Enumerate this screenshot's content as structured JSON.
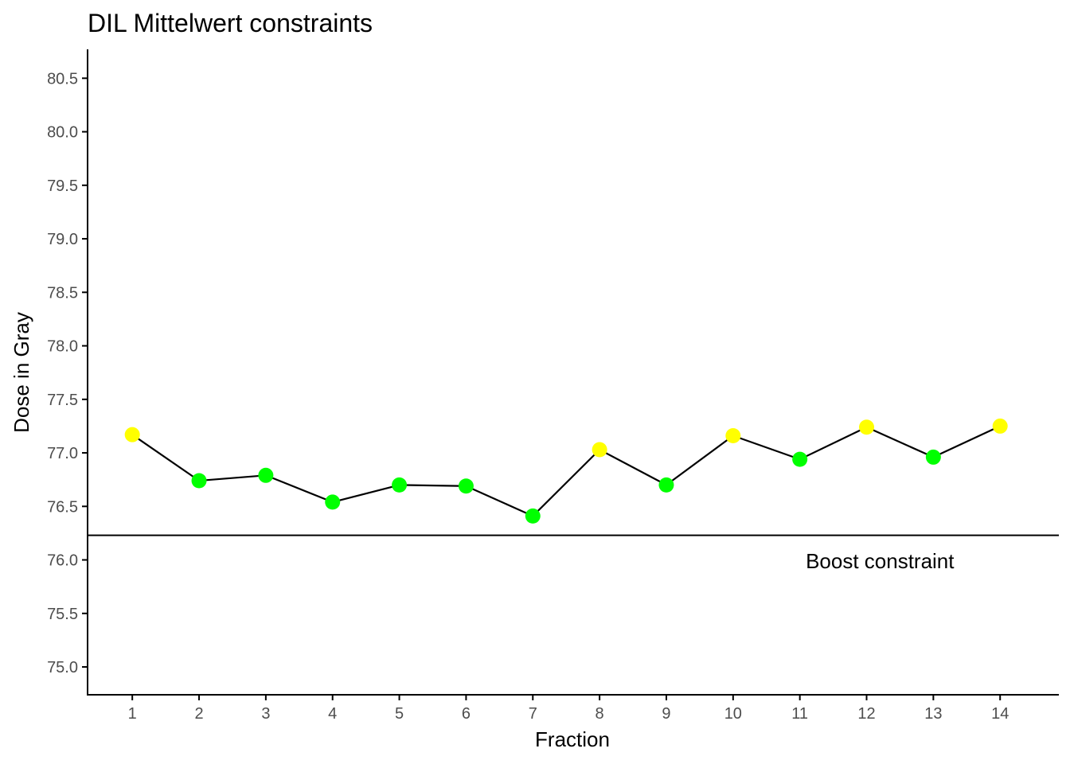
{
  "chart_data": {
    "type": "line",
    "title": "DIL Mittelwert constraints",
    "xlabel": "Fraction",
    "ylabel": "Dose in Gray",
    "x": [
      1,
      2,
      3,
      4,
      5,
      6,
      7,
      8,
      9,
      10,
      11,
      12,
      13,
      14
    ],
    "x_tick_labels": [
      "1",
      "2",
      "3",
      "4",
      "5",
      "6",
      "7",
      "8",
      "9",
      "10",
      "11",
      "12",
      "13",
      "14"
    ],
    "y_ticks": [
      75.0,
      75.5,
      76.0,
      76.5,
      77.0,
      77.5,
      78.0,
      78.5,
      79.0,
      79.5,
      80.0,
      80.5
    ],
    "y_tick_labels": [
      "75.0",
      "75.5",
      "76.0",
      "76.5",
      "77.0",
      "77.5",
      "78.0",
      "78.5",
      "79.0",
      "79.5",
      "80.0",
      "80.5"
    ],
    "xlim": [
      0.33,
      14.88
    ],
    "ylim": [
      74.74,
      80.77
    ],
    "grid": false,
    "series": [
      {
        "name": "Dose",
        "values": [
          77.17,
          76.74,
          76.79,
          76.54,
          76.7,
          76.69,
          76.41,
          77.03,
          76.7,
          77.16,
          76.94,
          77.24,
          76.96,
          77.25
        ],
        "point_colors": [
          "#ffff00",
          "#00ff00",
          "#00ff00",
          "#00ff00",
          "#00ff00",
          "#00ff00",
          "#00ff00",
          "#ffff00",
          "#00ff00",
          "#ffff00",
          "#00ff00",
          "#ffff00",
          "#00ff00",
          "#ffff00"
        ],
        "line_color": "#000000"
      }
    ],
    "reference_line": {
      "y": 76.23,
      "label": "Boost constraint",
      "label_x": 12.2,
      "label_y": 75.99
    }
  }
}
